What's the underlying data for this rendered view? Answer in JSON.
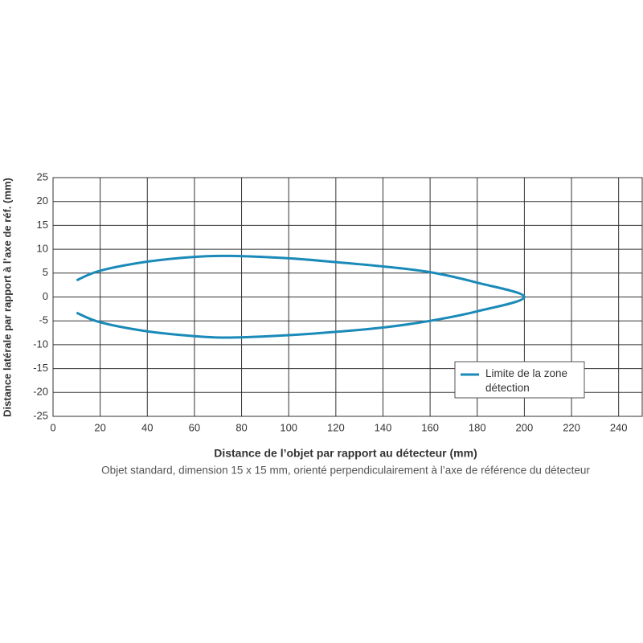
{
  "chart_data": {
    "type": "line",
    "xlabel": "Distance de l’objet par rapport au détecteur (mm)",
    "ylabel": "Distance latérale par rapport à l’axe de réf. (mm)",
    "note": "Objet standard, dimension 15 x 15 mm, orienté perpendiculairement à l’axe de référence du détecteur",
    "x": [
      10,
      20,
      40,
      60,
      75,
      100,
      120,
      140,
      160,
      180,
      200,
      180,
      160,
      140,
      120,
      100,
      75,
      60,
      40,
      20,
      10
    ],
    "series": [
      {
        "name": "Limite de la zone détection",
        "color": "#1a8ab8",
        "values": [
          3.5,
          5.5,
          7.4,
          8.4,
          8.6,
          8.1,
          7.3,
          6.4,
          5.2,
          3,
          0,
          -3,
          -5,
          -6.4,
          -7.3,
          -8,
          -8.5,
          -8.2,
          -7.2,
          -5.3,
          -3.3
        ]
      }
    ],
    "xlim": [
      0,
      250
    ],
    "xticks": [
      0,
      20,
      40,
      60,
      80,
      100,
      120,
      140,
      160,
      180,
      200,
      220,
      240
    ],
    "ylim": [
      -25,
      25
    ],
    "yticks": [
      -25,
      -20,
      -15,
      -10,
      -5,
      0,
      5,
      10,
      15,
      20,
      25
    ],
    "grid": true,
    "legend": "lower right"
  }
}
